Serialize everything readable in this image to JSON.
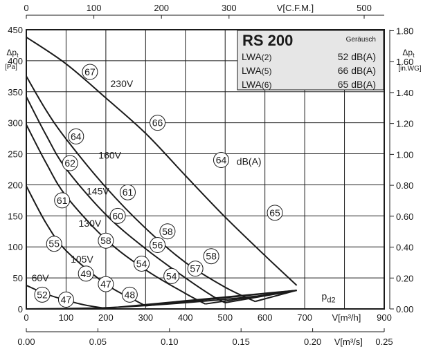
{
  "chart_data": {
    "type": "line",
    "title": "RS 200",
    "axes": {
      "x_bottom": {
        "label": "V[m³/h]",
        "range": [
          0,
          900
        ],
        "ticks": [
          "0",
          "100",
          "200",
          "300",
          "400",
          "500",
          "600",
          "700",
          "900"
        ]
      },
      "x_bottom2": {
        "label": "V[m³/s]",
        "range": [
          0,
          0.25
        ],
        "ticks": [
          "0.00",
          "0.05",
          "0.10",
          "0.15",
          "0.20",
          "0.25"
        ]
      },
      "x_top": {
        "label": "V[C.F.M.]",
        "range": [
          0,
          529.7
        ],
        "ticks": [
          "0",
          "100",
          "200",
          "300",
          "500"
        ]
      },
      "y_left": {
        "label": "Δpt",
        "unit": "[Pa]",
        "range": [
          0,
          450
        ],
        "ticks": [
          "0",
          "50",
          "100",
          "150",
          "200",
          "250",
          "300",
          "350",
          "400",
          "450"
        ]
      },
      "y_right": {
        "label": "Δpt",
        "unit": "[in.WG]",
        "range": [
          0,
          1.806
        ],
        "ticks": [
          "0.00",
          "0.20",
          "0.40",
          "0.60",
          "0.80",
          "1.00",
          "1.20",
          "1.40",
          "1.60",
          "1.80"
        ]
      }
    },
    "grid": true,
    "series": [
      {
        "name": "230V",
        "points": [
          [
            0,
            438
          ],
          [
            100,
            395
          ],
          [
            200,
            340
          ],
          [
            300,
            283
          ],
          [
            400,
            215
          ],
          [
            500,
            148
          ],
          [
            600,
            86
          ],
          [
            680,
            38
          ]
        ]
      },
      {
        "name": "160V",
        "points": [
          [
            0,
            375
          ],
          [
            50,
            320
          ],
          [
            100,
            274
          ],
          [
            200,
            196
          ],
          [
            300,
            130
          ],
          [
            400,
            75
          ],
          [
            500,
            35
          ],
          [
            575,
            12
          ]
        ]
      },
      {
        "name": "145V",
        "points": [
          [
            0,
            342
          ],
          [
            50,
            280
          ],
          [
            100,
            226
          ],
          [
            200,
            152
          ],
          [
            300,
            97
          ],
          [
            400,
            50
          ],
          [
            470,
            20
          ],
          [
            500,
            10
          ]
        ]
      },
      {
        "name": "130V",
        "points": [
          [
            0,
            297
          ],
          [
            50,
            235
          ],
          [
            100,
            182
          ],
          [
            200,
            112
          ],
          [
            300,
            63
          ],
          [
            400,
            25
          ],
          [
            450,
            8
          ]
        ]
      },
      {
        "name": "105V",
        "points": [
          [
            0,
            198
          ],
          [
            50,
            138
          ],
          [
            100,
            94
          ],
          [
            200,
            40
          ],
          [
            270,
            15
          ],
          [
            300,
            5
          ]
        ]
      },
      {
        "name": "60V",
        "points": [
          [
            0,
            38
          ],
          [
            50,
            24
          ],
          [
            100,
            14
          ],
          [
            150,
            6
          ],
          [
            200,
            1
          ]
        ]
      },
      {
        "name": "pd2",
        "points": [
          [
            0,
            0
          ],
          [
            200,
            2
          ],
          [
            400,
            10
          ],
          [
            600,
            22
          ],
          [
            680,
            30
          ]
        ]
      }
    ],
    "sound_points": [
      {
        "label": "67",
        "x": 160,
        "y": 382
      },
      {
        "label": "66",
        "x": 330,
        "y": 300
      },
      {
        "label": "64",
        "x": 490,
        "y": 240
      },
      {
        "label": "65",
        "x": 625,
        "y": 155
      },
      {
        "label": "64",
        "x": 125,
        "y": 278
      },
      {
        "label": "62",
        "x": 110,
        "y": 235
      },
      {
        "label": "61",
        "x": 255,
        "y": 188
      },
      {
        "label": "61",
        "x": 90,
        "y": 175
      },
      {
        "label": "60",
        "x": 230,
        "y": 150
      },
      {
        "label": "58",
        "x": 355,
        "y": 125
      },
      {
        "label": "58",
        "x": 200,
        "y": 110
      },
      {
        "label": "58",
        "x": 465,
        "y": 85
      },
      {
        "label": "56",
        "x": 330,
        "y": 103
      },
      {
        "label": "55",
        "x": 70,
        "y": 105
      },
      {
        "label": "54",
        "x": 290,
        "y": 73
      },
      {
        "label": "54",
        "x": 365,
        "y": 53
      },
      {
        "label": "57",
        "x": 425,
        "y": 65
      },
      {
        "label": "49",
        "x": 150,
        "y": 57
      },
      {
        "label": "47",
        "x": 200,
        "y": 40
      },
      {
        "label": "48",
        "x": 260,
        "y": 23
      },
      {
        "label": "52",
        "x": 40,
        "y": 23
      },
      {
        "label": "47",
        "x": 100,
        "y": 15
      }
    ],
    "curve_labels": [
      {
        "text": "230V",
        "x": 240,
        "y": 363
      },
      {
        "text": "160V",
        "x": 210,
        "y": 248
      },
      {
        "text": "145V",
        "x": 180,
        "y": 190
      },
      {
        "text": "130V",
        "x": 160,
        "y": 138
      },
      {
        "text": "105V",
        "x": 140,
        "y": 80
      },
      {
        "text": "60V",
        "x": 35,
        "y": 50
      },
      {
        "text": "dB(A)",
        "x": 560,
        "y": 238
      },
      {
        "text": "p",
        "sub": "d2",
        "x": 760,
        "y": 15
      }
    ],
    "legend": {
      "title": "RS 200",
      "header": "Geräusch",
      "rows": [
        {
          "name": "LWA",
          "sub": "(2)",
          "value": "52 dB(A)"
        },
        {
          "name": "LWA",
          "sub": "(5)",
          "value": "66 dB(A)"
        },
        {
          "name": "LWA",
          "sub": "(6)",
          "value": "65 dB(A)"
        }
      ],
      "placement": "top-right",
      "bg_color": "#e6e6e6"
    }
  }
}
